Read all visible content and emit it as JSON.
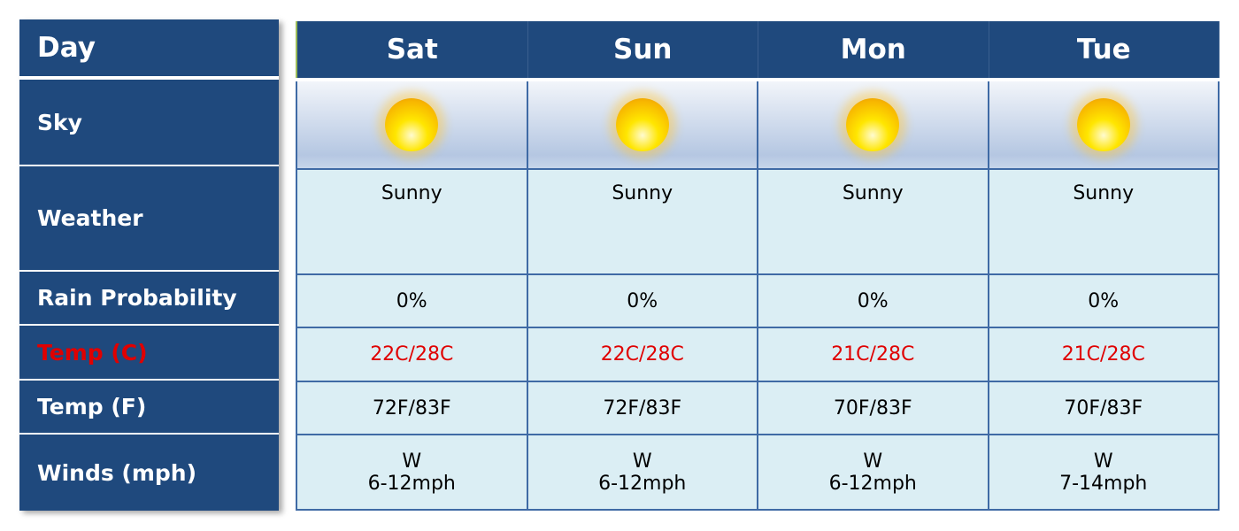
{
  "labels": {
    "day": "Day",
    "sky": "Sky",
    "weather": "Weather",
    "rain": "Rain Probability",
    "temp_c": "Temp (C)",
    "temp_f": "Temp (F)",
    "winds": "Winds (mph)"
  },
  "colors": {
    "header": "#1f497d",
    "cell": "#dbeef4",
    "temp_c": "#e00000"
  },
  "days": [
    {
      "day": "Sat",
      "sky": "sun-icon",
      "weather": "Sunny",
      "rain": "0%",
      "temp_c": "22C/28C",
      "temp_f": "72F/83F",
      "wind_dir": "W",
      "wind_speed": "6-12mph"
    },
    {
      "day": "Sun",
      "sky": "sun-icon",
      "weather": "Sunny",
      "rain": "0%",
      "temp_c": "22C/28C",
      "temp_f": "72F/83F",
      "wind_dir": "W",
      "wind_speed": "6-12mph"
    },
    {
      "day": "Mon",
      "sky": "sun-icon",
      "weather": "Sunny",
      "rain": "0%",
      "temp_c": "21C/28C",
      "temp_f": "70F/83F",
      "wind_dir": "W",
      "wind_speed": "6-12mph"
    },
    {
      "day": "Tue",
      "sky": "sun-icon",
      "weather": "Sunny",
      "rain": "0%",
      "temp_c": "21C/28C",
      "temp_f": "70F/83F",
      "wind_dir": "W",
      "wind_speed": "7-14mph"
    }
  ]
}
